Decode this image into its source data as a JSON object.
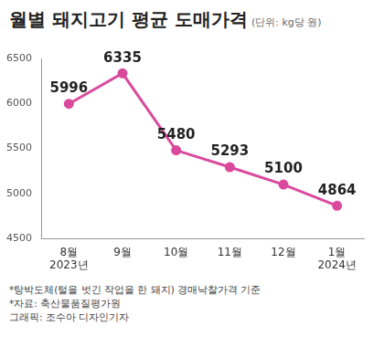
{
  "chart_data": {
    "type": "line",
    "title": "월별 돼지고기 평균 도매가격",
    "subtitle": "(단위: kg당 원)",
    "categories": [
      [
        "8월",
        "2023년"
      ],
      "9월",
      "10월",
      "11월",
      "12월",
      [
        "1월",
        "2024년"
      ]
    ],
    "values": [
      5996,
      6335,
      5480,
      5293,
      5100,
      4864
    ],
    "color": "#d94a9c",
    "marker": "circle",
    "line_style": "solid",
    "ylim": [
      4500,
      6500
    ],
    "yticks": [
      4500,
      5000,
      5500,
      6000,
      6500
    ],
    "grid": false,
    "data_labels": true,
    "annotations": [
      "*탕박도체(털을 벗긴 작업을 한 돼지) 경매낙찰가격 기준",
      "*자료: 축산물품질평가원",
      "그래픽: 조수아 디자인기자"
    ]
  }
}
